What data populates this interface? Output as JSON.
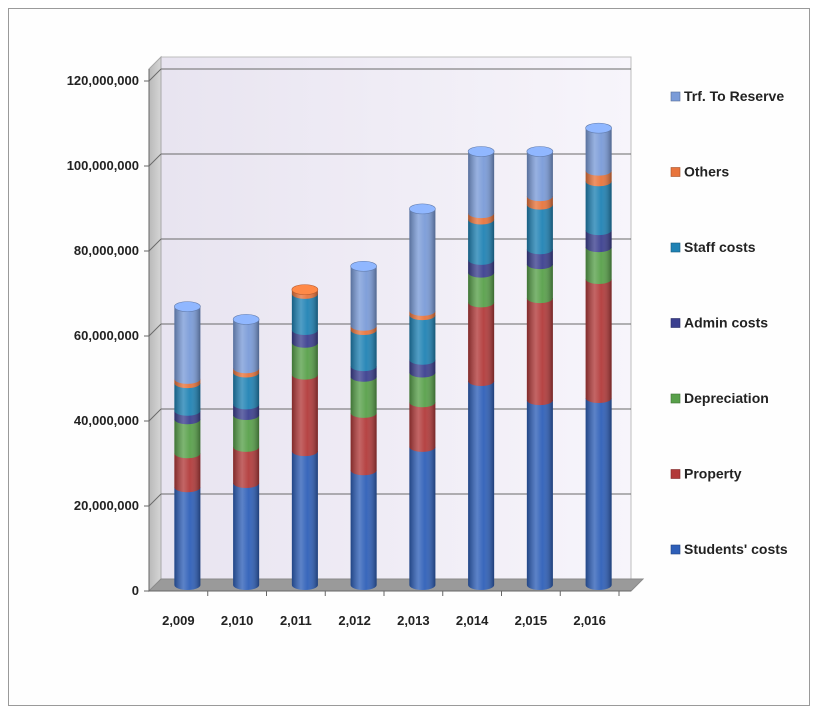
{
  "chart_data": {
    "type": "bar",
    "stacked": true,
    "style": "3d-cylinder",
    "categories": [
      "2,009",
      "2,010",
      "2,011",
      "2,012",
      "2,013",
      "2,014",
      "2,015",
      "2,016"
    ],
    "y_ticks": [
      "0",
      "20,000,000",
      "40,000,000",
      "60,000,000",
      "80,000,000",
      "100,000,000",
      "120,000,000"
    ],
    "ylim": [
      0,
      120000000
    ],
    "grid": true,
    "legend_position": "right",
    "series": [
      {
        "name": "Students' costs",
        "color": "#2e5fb8",
        "values": [
          23000000,
          24000000,
          31500000,
          27000000,
          32500000,
          48000000,
          43500000,
          44000000
        ]
      },
      {
        "name": "Property",
        "color": "#b23a3a",
        "values": [
          8000000,
          8500000,
          18000000,
          13500000,
          10500000,
          18500000,
          24000000,
          28000000
        ]
      },
      {
        "name": "Depreciation",
        "color": "#58a04a",
        "values": [
          8000000,
          7500000,
          7500000,
          8500000,
          7000000,
          7000000,
          8000000,
          7500000
        ]
      },
      {
        "name": "Admin costs",
        "color": "#3b3f8f",
        "values": [
          2000000,
          2500000,
          3000000,
          2500000,
          3000000,
          3000000,
          3500000,
          4000000
        ]
      },
      {
        "name": "Staff costs",
        "color": "#1f82b4",
        "values": [
          6500000,
          7500000,
          8500000,
          8500000,
          10500000,
          9500000,
          10500000,
          11500000
        ]
      },
      {
        "name": "Others",
        "color": "#e8743c",
        "values": [
          1000000,
          1000000,
          1000000,
          1000000,
          1000000,
          1500000,
          2000000,
          2500000
        ]
      },
      {
        "name": "Trf. To Reserve",
        "color": "#7a9bd8",
        "values": [
          17000000,
          11500000,
          0,
          14000000,
          24000000,
          14500000,
          10500000,
          10000000
        ]
      }
    ]
  }
}
